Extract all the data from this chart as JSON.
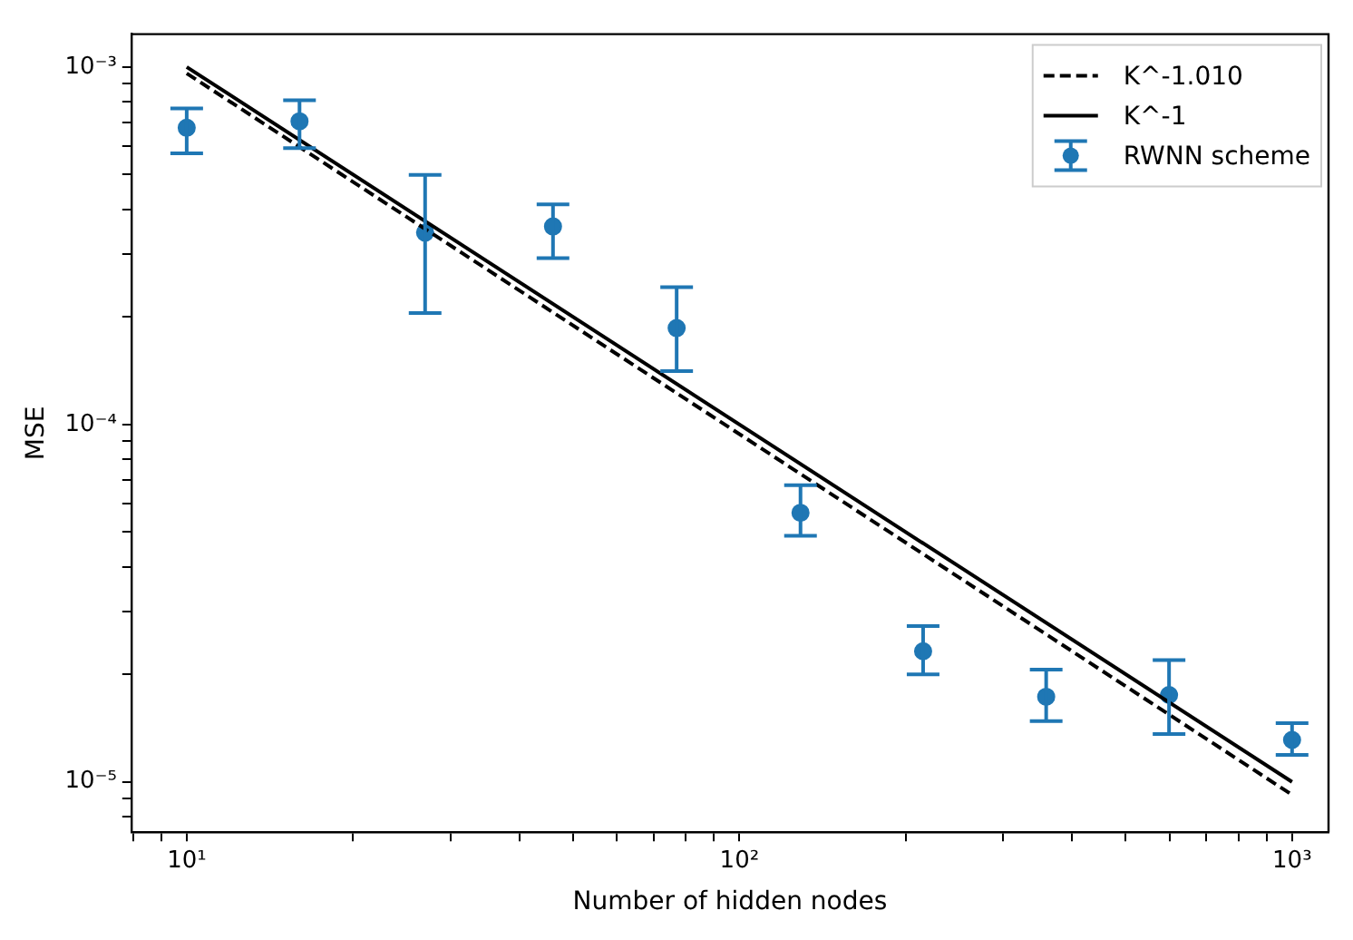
{
  "chart_data": {
    "type": "scatter",
    "xlabel": "Number of hidden nodes",
    "ylabel": "MSE",
    "log": "xy",
    "grid": false,
    "legend": "top right",
    "xlim": [
      7.94,
      1164
    ],
    "ylim": [
      7.23e-06,
      0.001236
    ],
    "xticks": [
      {
        "value": 8,
        "label": null
      },
      {
        "value": 9,
        "label": null
      },
      {
        "value": 10,
        "label": "10¹"
      },
      {
        "value": 20,
        "label": null
      },
      {
        "value": 30,
        "label": null
      },
      {
        "value": 40,
        "label": null
      },
      {
        "value": 50,
        "label": null
      },
      {
        "value": 60,
        "label": null
      },
      {
        "value": 70,
        "label": null
      },
      {
        "value": 80,
        "label": null
      },
      {
        "value": 90,
        "label": null
      },
      {
        "value": 100,
        "label": "10²"
      },
      {
        "value": 200,
        "label": null
      },
      {
        "value": 300,
        "label": null
      },
      {
        "value": 400,
        "label": null
      },
      {
        "value": 500,
        "label": null
      },
      {
        "value": 600,
        "label": null
      },
      {
        "value": 700,
        "label": null
      },
      {
        "value": 800,
        "label": null
      },
      {
        "value": 900,
        "label": null
      },
      {
        "value": 1000,
        "label": "10³"
      }
    ],
    "yticks": [
      {
        "value": 8e-06,
        "label": null
      },
      {
        "value": 9e-06,
        "label": null
      },
      {
        "value": 1e-05,
        "label": "10⁻⁵"
      },
      {
        "value": 2e-05,
        "label": null
      },
      {
        "value": 3e-05,
        "label": null
      },
      {
        "value": 4e-05,
        "label": null
      },
      {
        "value": 5e-05,
        "label": null
      },
      {
        "value": 6e-05,
        "label": null
      },
      {
        "value": 7e-05,
        "label": null
      },
      {
        "value": 8e-05,
        "label": null
      },
      {
        "value": 9e-05,
        "label": null
      },
      {
        "value": 0.0001,
        "label": "10⁻⁴"
      },
      {
        "value": 0.0002,
        "label": null
      },
      {
        "value": 0.0003,
        "label": null
      },
      {
        "value": 0.0004,
        "label": null
      },
      {
        "value": 0.0005,
        "label": null
      },
      {
        "value": 0.0006,
        "label": null
      },
      {
        "value": 0.0007,
        "label": null
      },
      {
        "value": 0.0008,
        "label": null
      },
      {
        "value": 0.0009,
        "label": null
      },
      {
        "value": 0.001,
        "label": "10⁻³"
      }
    ],
    "series": [
      {
        "name": "K^-1.010",
        "type": "line",
        "color": "#000000",
        "line_style": "dashed",
        "marker": "none",
        "x": [
          10,
          1000
        ],
        "values": [
          0.00096,
          9.2e-06
        ]
      },
      {
        "name": "K^-1",
        "type": "line",
        "color": "#000000",
        "line_style": "solid",
        "marker": "none",
        "x": [
          10,
          1000
        ],
        "values": [
          0.001,
          1e-05
        ]
      },
      {
        "name": "RWNN scheme",
        "type": "scatter",
        "color": "#1f77b4",
        "marker": "circle",
        "x": [
          10,
          16,
          27,
          46,
          77,
          129,
          215,
          359,
          599,
          1000
        ],
        "values": [
          0.000676,
          0.000705,
          0.000344,
          0.000358,
          0.000186,
          5.66e-05,
          2.32e-05,
          1.73e-05,
          1.75e-05,
          1.31e-05
        ],
        "errors": [
          [
            0.000573,
            0.000766
          ],
          [
            0.000593,
            0.000807
          ],
          [
            0.000205,
            0.000499
          ],
          [
            0.000292,
            0.000413
          ],
          [
            0.000141,
            0.000242
          ],
          [
            4.88e-05,
            6.76e-05
          ],
          [
            2e-05,
            2.73e-05
          ],
          [
            1.48e-05,
            2.06e-05
          ],
          [
            1.36e-05,
            2.19e-05
          ],
          [
            1.19e-05,
            1.46e-05
          ]
        ]
      }
    ]
  }
}
